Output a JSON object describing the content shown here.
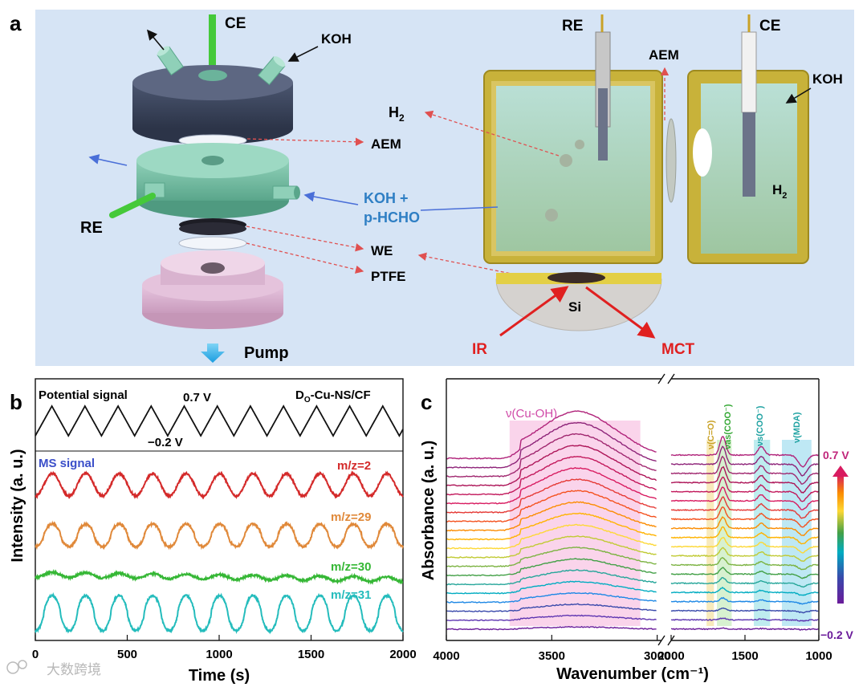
{
  "panel_a": {
    "label": "a",
    "cell_exploded": {
      "ce": "CE",
      "koh": "KOH",
      "aem": "AEM",
      "re": "RE",
      "koh_hcho_1": "KOH +",
      "koh_hcho_2": "p-HCHO",
      "we": "WE",
      "ptfe": "PTFE",
      "pump": "Pump"
    },
    "cell_assembled": {
      "re": "RE",
      "ce": "CE",
      "aem": "AEM",
      "koh": "KOH",
      "h2": "H",
      "h2_sub": "2",
      "h2_right": "H",
      "h2_right_sub": "2",
      "si": "Si",
      "ir": "IR",
      "mct": "MCT"
    }
  },
  "panel_b": {
    "label": "b",
    "potential_label": "Potential signal",
    "sample_label_main": "D",
    "sample_label_sub": "O",
    "sample_label_rest": "-Cu-NS/CF",
    "upper_v": "0.7 V",
    "lower_v": "−0.2 V",
    "ms_label": "MS signal",
    "chart_data": {
      "type": "line",
      "title": "",
      "xlabel": "Time (s)",
      "ylabel": "Intensity (a. u.)",
      "xlim": [
        0,
        2000
      ],
      "xticks": [
        0,
        500,
        1000,
        1500,
        2000
      ],
      "potential": {
        "min_v": -0.2,
        "max_v": 0.7,
        "start_t": 0,
        "period_s": 180,
        "cycles": 11
      },
      "series": [
        {
          "name": "m/z=2",
          "color": "#d42a2a",
          "period_s": 182,
          "amplitude": 1.0
        },
        {
          "name": "m/z=29",
          "color": "#e0893a",
          "period_s": 182,
          "amplitude": 0.9
        },
        {
          "name": "m/z=30",
          "color": "#35b735",
          "period_s": 182,
          "amplitude": 0.15
        },
        {
          "name": "m/z=31",
          "color": "#24bcbc",
          "period_s": 182,
          "amplitude": 1.2
        }
      ]
    }
  },
  "panel_c": {
    "label": "c",
    "band_labels": {
      "cu_oh": "ν(Cu-OH)",
      "c_o": "ν(C=O)",
      "coo_as": "νas(COO⁻)",
      "coo_s": "νs(COO⁻)",
      "mda": "ν(MDA)"
    },
    "colorbar_top": "0.7 V",
    "colorbar_bottom": "−0.2 V",
    "chart_data": {
      "type": "line",
      "xlabel": "Wavenumber (cm⁻¹)",
      "ylabel": "Absorbance (a. u.)",
      "x_axis_broken": true,
      "segments": [
        [
          4000,
          3000
        ],
        [
          2000,
          1000
        ]
      ],
      "xticks": [
        4000,
        3500,
        3000,
        2000,
        1500,
        1000
      ],
      "n_spectra": 20,
      "potential_range": [
        -0.2,
        0.7
      ],
      "bands_cm1": {
        "cu_oh": [
          3700,
          3080
        ],
        "c_o": [
          1760,
          1710
        ],
        "coo_as": [
          1690,
          1590
        ],
        "coo_s": [
          1440,
          1330
        ],
        "mda": [
          1250,
          1050
        ]
      }
    }
  },
  "watermark": "大数跨境"
}
